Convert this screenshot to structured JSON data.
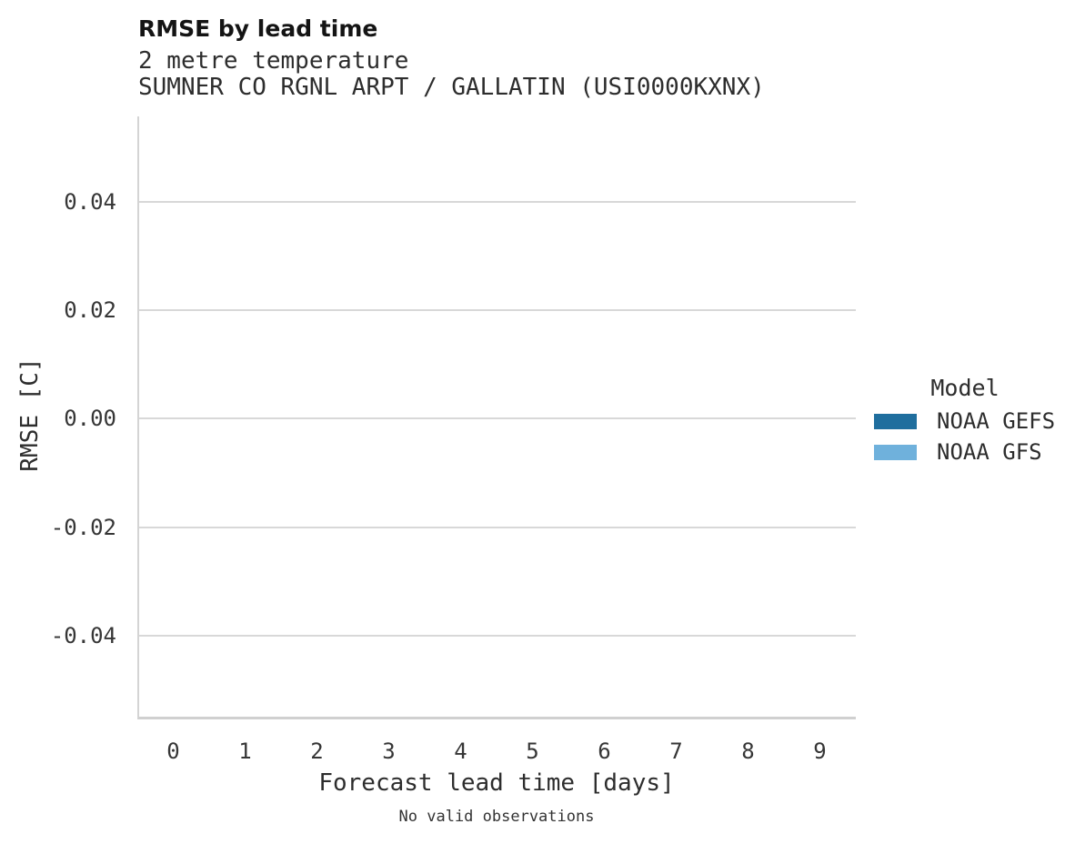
{
  "figure": {
    "title": "RMSE by lead time",
    "subtitle_line1": "2 metre temperature",
    "subtitle_line2": "SUMNER CO RGNL ARPT / GALLATIN (USI0000KXNX)",
    "caption": "No valid observations"
  },
  "chart_data": {
    "type": "line",
    "title": "RMSE by lead time",
    "subtitle": "2 metre temperature",
    "station": "SUMNER CO RGNL ARPT / GALLATIN (USI0000KXNX)",
    "xlabel": "Forecast lead time [days]",
    "ylabel": "RMSE [C]",
    "x_ticks": [
      "0",
      "1",
      "2",
      "3",
      "4",
      "5",
      "6",
      "7",
      "8",
      "9"
    ],
    "y_ticks": [
      {
        "label": "0.04",
        "value": 0.04
      },
      {
        "label": "0.02",
        "value": 0.02
      },
      {
        "label": "0.00",
        "value": 0.0
      },
      {
        "label": "-0.02",
        "value": -0.02
      },
      {
        "label": "-0.04",
        "value": -0.04
      }
    ],
    "ylim": [
      -0.0549,
      0.0557
    ],
    "grid": "horizontal-only",
    "legend": {
      "title": "Model",
      "position": "right",
      "entries": [
        {
          "label": "NOAA GEFS",
          "color": "#1f6e9e"
        },
        {
          "label": "NOAA GFS",
          "color": "#6fb1dc"
        }
      ]
    },
    "series": [
      {
        "name": "NOAA GEFS",
        "color": "#1f6e9e",
        "x": [],
        "y": []
      },
      {
        "name": "NOAA GFS",
        "color": "#6fb1dc",
        "x": [],
        "y": []
      }
    ],
    "annotation": "No valid observations"
  }
}
